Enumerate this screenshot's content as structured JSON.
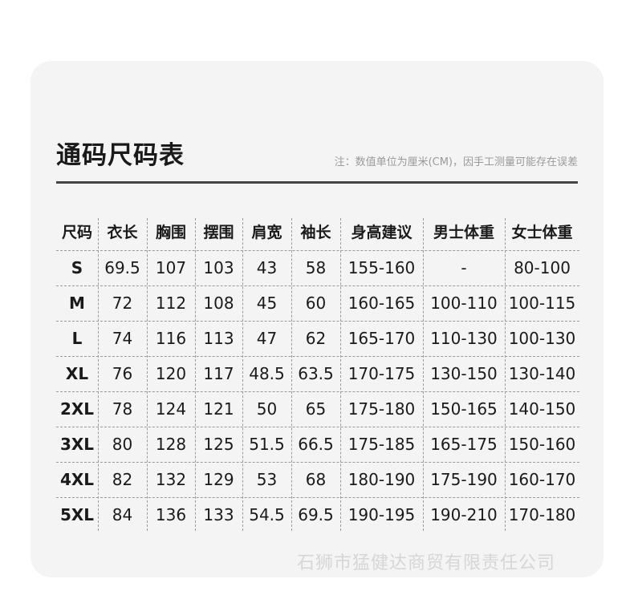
{
  "header": {
    "title": "通码尺码表",
    "note": "注：数值单位为厘米(CM)，因手工测量可能存在误差"
  },
  "table": {
    "columns": [
      "尺码",
      "衣长",
      "胸围",
      "摆围",
      "肩宽",
      "袖长",
      "身高建议",
      "男士体重",
      "女士体重"
    ],
    "rows": [
      [
        "S",
        "69.5",
        "107",
        "103",
        "43",
        "58",
        "155-160",
        "-",
        "80-100"
      ],
      [
        "M",
        "72",
        "112",
        "108",
        "45",
        "60",
        "160-165",
        "100-110",
        "100-115"
      ],
      [
        "L",
        "74",
        "116",
        "113",
        "47",
        "62",
        "165-170",
        "110-130",
        "100-130"
      ],
      [
        "XL",
        "76",
        "120",
        "117",
        "48.5",
        "63.5",
        "170-175",
        "130-150",
        "130-140"
      ],
      [
        "2XL",
        "78",
        "124",
        "121",
        "50",
        "65",
        "175-180",
        "150-165",
        "140-150"
      ],
      [
        "3XL",
        "80",
        "128",
        "125",
        "51.5",
        "66.5",
        "175-185",
        "165-175",
        "150-160"
      ],
      [
        "4XL",
        "82",
        "132",
        "129",
        "53",
        "68",
        "180-190",
        "175-190",
        "160-170"
      ],
      [
        "5XL",
        "84",
        "136",
        "133",
        "54.5",
        "69.5",
        "190-195",
        "190-210",
        "170-180"
      ]
    ]
  },
  "watermark": "石狮市猛健达商贸有限责任公司"
}
